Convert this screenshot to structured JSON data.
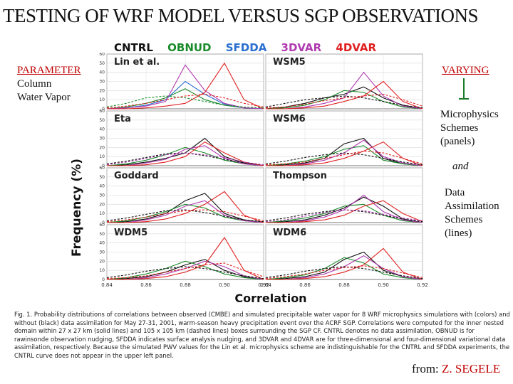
{
  "title": "TESTING OF WRF MODEL VERSUS SGP OBSERVATIONS",
  "legend": [
    {
      "label": "CNTRL",
      "color": "#111111"
    },
    {
      "label": "OBNUD",
      "color": "#1a8a2a"
    },
    {
      "label": "SFDDA",
      "color": "#2a6fd0"
    },
    {
      "label": "3DVAR",
      "color": "#b03ab0"
    },
    {
      "label": "4DVAR",
      "color": "#e02020"
    }
  ],
  "left_text": {
    "heading": "PARAMETER",
    "line1": "Column",
    "line2": "Water Vapor"
  },
  "right_text": {
    "heading": "VARYING",
    "line1": "Microphysics",
    "line2": "Schemes",
    "line3": "(panels)",
    "and": "and",
    "line4": "Data",
    "line5": "Assimilation",
    "line6": "Schemes",
    "line7": "(lines)"
  },
  "caption": "Fig. 1. Probability distributions of correlations between observed (CMBE) and simulated precipitable water vapor for 8 WRF microphysics simulations with (colors) and without (black) data assimilation for May 27-31, 2001, warm-season heavy precipitation event over the ACRF SGP. Correlations were computed for the inner nested domain within 27 x 27 km (solid lines) and 105 x 105 km (dashed lines) boxes surrounding the SGP CF. CNTRL denotes no data assimilation, OBNUD is for rawinsonde observation nudging, SFDDA indicates surface analysis nudging, and 3DVAR and 4DVAR are for three-dimensional and four-dimensional variational data assimilation, respectively. Because the simulated PWV values for the Lin et al. microphysics scheme are indistinguishable for the CNTRL and SFDDA experiments, the CNTRL curve does not appear in the upper left panel.",
  "credit": {
    "prefix": "from:",
    "name": "Z. SEGELE"
  },
  "chart_data": {
    "type": "line",
    "ylabel": "Frequency (%)",
    "xlabel": "Correlation",
    "x": [
      0.84,
      0.85,
      0.86,
      0.87,
      0.88,
      0.89,
      0.9,
      0.91,
      0.92
    ],
    "xticks": [
      "0.84",
      "0.86",
      "0.88",
      "0.90",
      "0.92"
    ],
    "xticks_values": [
      0.84,
      0.86,
      0.88,
      0.9,
      0.92
    ],
    "ylim": [
      0,
      60
    ],
    "yticks": [
      0,
      10,
      20,
      30,
      40,
      50,
      60
    ],
    "line_styles": {
      "solid": "27 x 27 km",
      "dashed": "105 x 105 km"
    },
    "panels": [
      {
        "name": "Lin et al.",
        "series": [
          {
            "name": "OBNUD",
            "color": "#1a8a2a",
            "style": "solid",
            "values": [
              0,
              2,
              6,
              12,
              22,
              10,
              4,
              1,
              0
            ]
          },
          {
            "name": "SFDDA",
            "color": "#2a6fd0",
            "style": "solid",
            "values": [
              0,
              1,
              4,
              10,
              30,
              16,
              5,
              1,
              0
            ]
          },
          {
            "name": "3DVAR",
            "color": "#b03ab0",
            "style": "solid",
            "values": [
              0,
              1,
              3,
              8,
              48,
              20,
              6,
              1,
              0
            ]
          },
          {
            "name": "4DVAR",
            "color": "#e02020",
            "style": "solid",
            "values": [
              0,
              0,
              1,
              3,
              6,
              18,
              50,
              10,
              0
            ]
          },
          {
            "name": "OBNUD",
            "color": "#1a8a2a",
            "style": "dashed",
            "values": [
              2,
              6,
              12,
              14,
              12,
              8,
              4,
              2,
              1
            ]
          },
          {
            "name": "4DVAR",
            "color": "#e02020",
            "style": "dashed",
            "values": [
              1,
              3,
              6,
              10,
              14,
              16,
              12,
              6,
              2
            ]
          }
        ]
      },
      {
        "name": "WSM5",
        "series": [
          {
            "name": "CNTRL",
            "color": "#111111",
            "style": "solid",
            "values": [
              0,
              2,
              6,
              12,
              16,
              24,
              12,
              4,
              0
            ]
          },
          {
            "name": "OBNUD",
            "color": "#1a8a2a",
            "style": "solid",
            "values": [
              0,
              1,
              4,
              10,
              20,
              18,
              8,
              2,
              0
            ]
          },
          {
            "name": "3DVAR",
            "color": "#b03ab0",
            "style": "solid",
            "values": [
              0,
              0,
              2,
              6,
              12,
              40,
              14,
              3,
              0
            ]
          },
          {
            "name": "4DVAR",
            "color": "#e02020",
            "style": "solid",
            "values": [
              0,
              0,
              1,
              3,
              8,
              14,
              30,
              8,
              0
            ]
          },
          {
            "name": "CNTRL",
            "color": "#111111",
            "style": "dashed",
            "values": [
              2,
              6,
              10,
              12,
              14,
              12,
              8,
              4,
              1
            ]
          },
          {
            "name": "4DVAR",
            "color": "#e02020",
            "style": "dashed",
            "values": [
              1,
              2,
              5,
              9,
              12,
              14,
              16,
              10,
              3
            ]
          }
        ]
      },
      {
        "name": "Eta",
        "series": [
          {
            "name": "CNTRL",
            "color": "#111111",
            "style": "solid",
            "values": [
              0,
              1,
              4,
              8,
              14,
              30,
              10,
              3,
              0
            ]
          },
          {
            "name": "OBNUD",
            "color": "#1a8a2a",
            "style": "solid",
            "values": [
              0,
              2,
              6,
              12,
              20,
              14,
              6,
              2,
              0
            ]
          },
          {
            "name": "3DVAR",
            "color": "#b03ab0",
            "style": "solid",
            "values": [
              0,
              0,
              3,
              7,
              18,
              22,
              8,
              2,
              0
            ]
          },
          {
            "name": "4DVAR",
            "color": "#e02020",
            "style": "solid",
            "values": [
              0,
              0,
              1,
              4,
              10,
              26,
              14,
              4,
              0
            ]
          },
          {
            "name": "CNTRL",
            "color": "#111111",
            "style": "dashed",
            "values": [
              2,
              5,
              9,
              13,
              14,
              11,
              7,
              3,
              1
            ]
          },
          {
            "name": "3DVAR",
            "color": "#b03ab0",
            "style": "dashed",
            "values": [
              1,
              4,
              8,
              12,
              14,
              12,
              9,
              4,
              1
            ]
          }
        ]
      },
      {
        "name": "WSM6",
        "series": [
          {
            "name": "CNTRL",
            "color": "#111111",
            "style": "solid",
            "values": [
              0,
              1,
              3,
              8,
              24,
              30,
              8,
              2,
              0
            ]
          },
          {
            "name": "OBNUD",
            "color": "#1a8a2a",
            "style": "solid",
            "values": [
              0,
              2,
              5,
              10,
              18,
              22,
              6,
              2,
              0
            ]
          },
          {
            "name": "3DVAR",
            "color": "#b03ab0",
            "style": "solid",
            "values": [
              0,
              0,
              2,
              6,
              14,
              28,
              10,
              3,
              0
            ]
          },
          {
            "name": "4DVAR",
            "color": "#e02020",
            "style": "solid",
            "values": [
              0,
              0,
              1,
              3,
              8,
              16,
              26,
              8,
              0
            ]
          },
          {
            "name": "CNTRL",
            "color": "#111111",
            "style": "dashed",
            "values": [
              2,
              5,
              9,
              12,
              14,
              12,
              8,
              4,
              1
            ]
          },
          {
            "name": "4DVAR",
            "color": "#e02020",
            "style": "dashed",
            "values": [
              1,
              2,
              4,
              8,
              12,
              16,
              14,
              8,
              2
            ]
          }
        ]
      },
      {
        "name": "Goddard",
        "series": [
          {
            "name": "CNTRL",
            "color": "#111111",
            "style": "solid",
            "values": [
              0,
              1,
              4,
              10,
              24,
              32,
              10,
              3,
              0
            ]
          },
          {
            "name": "OBNUD",
            "color": "#1a8a2a",
            "style": "solid",
            "values": [
              0,
              2,
              6,
              12,
              20,
              16,
              6,
              2,
              0
            ]
          },
          {
            "name": "3DVAR",
            "color": "#b03ab0",
            "style": "solid",
            "values": [
              0,
              0,
              3,
              8,
              18,
              24,
              8,
              2,
              0
            ]
          },
          {
            "name": "4DVAR",
            "color": "#e02020",
            "style": "solid",
            "values": [
              0,
              0,
              1,
              4,
              10,
              20,
              34,
              8,
              0
            ]
          },
          {
            "name": "CNTRL",
            "color": "#111111",
            "style": "dashed",
            "values": [
              2,
              5,
              9,
              13,
              14,
              11,
              7,
              3,
              1
            ]
          },
          {
            "name": "4DVAR",
            "color": "#e02020",
            "style": "dashed",
            "values": [
              1,
              3,
              6,
              10,
              13,
              14,
              12,
              7,
              2
            ]
          }
        ]
      },
      {
        "name": "Thompson",
        "series": [
          {
            "name": "CNTRL",
            "color": "#111111",
            "style": "solid",
            "values": [
              0,
              1,
              3,
              8,
              16,
              28,
              18,
              4,
              0
            ]
          },
          {
            "name": "OBNUD",
            "color": "#1a8a2a",
            "style": "solid",
            "values": [
              0,
              2,
              5,
              10,
              18,
              20,
              8,
              2,
              0
            ]
          },
          {
            "name": "3DVAR",
            "color": "#b03ab0",
            "style": "solid",
            "values": [
              0,
              0,
              2,
              6,
              14,
              30,
              12,
              3,
              0
            ]
          },
          {
            "name": "4DVAR",
            "color": "#e02020",
            "style": "solid",
            "values": [
              0,
              0,
              1,
              3,
              8,
              18,
              24,
              10,
              1
            ]
          },
          {
            "name": "CNTRL",
            "color": "#111111",
            "style": "dashed",
            "values": [
              2,
              5,
              9,
              12,
              14,
              12,
              8,
              4,
              1
            ]
          },
          {
            "name": "3DVAR",
            "color": "#b03ab0",
            "style": "dashed",
            "values": [
              1,
              3,
              7,
              11,
              14,
              13,
              9,
              5,
              2
            ]
          }
        ]
      },
      {
        "name": "WDM5",
        "series": [
          {
            "name": "CNTRL",
            "color": "#111111",
            "style": "solid",
            "values": [
              0,
              1,
              3,
              8,
              16,
              22,
              10,
              3,
              0
            ]
          },
          {
            "name": "OBNUD",
            "color": "#1a8a2a",
            "style": "solid",
            "values": [
              0,
              2,
              6,
              12,
              20,
              14,
              6,
              2,
              0
            ]
          },
          {
            "name": "3DVAR",
            "color": "#b03ab0",
            "style": "solid",
            "values": [
              0,
              0,
              2,
              6,
              12,
              20,
              14,
              4,
              0
            ]
          },
          {
            "name": "4DVAR",
            "color": "#e02020",
            "style": "solid",
            "values": [
              0,
              0,
              1,
              3,
              8,
              16,
              46,
              10,
              0
            ]
          },
          {
            "name": "CNTRL",
            "color": "#111111",
            "style": "dashed",
            "values": [
              2,
              5,
              9,
              12,
              14,
              12,
              8,
              4,
              1
            ]
          },
          {
            "name": "4DVAR",
            "color": "#e02020",
            "style": "dashed",
            "values": [
              1,
              2,
              4,
              8,
              12,
              16,
              18,
              10,
              3
            ]
          }
        ]
      },
      {
        "name": "WDM6",
        "series": [
          {
            "name": "CNTRL",
            "color": "#111111",
            "style": "solid",
            "values": [
              0,
              1,
              3,
              8,
              22,
              30,
              10,
              3,
              0
            ]
          },
          {
            "name": "OBNUD",
            "color": "#1a8a2a",
            "style": "solid",
            "values": [
              0,
              2,
              5,
              12,
              24,
              18,
              6,
              2,
              0
            ]
          },
          {
            "name": "3DVAR",
            "color": "#b03ab0",
            "style": "solid",
            "values": [
              0,
              0,
              2,
              6,
              14,
              26,
              12,
              3,
              0
            ]
          },
          {
            "name": "4DVAR",
            "color": "#e02020",
            "style": "solid",
            "values": [
              0,
              0,
              1,
              3,
              8,
              16,
              34,
              8,
              0
            ]
          },
          {
            "name": "CNTRL",
            "color": "#111111",
            "style": "dashed",
            "values": [
              2,
              5,
              9,
              12,
              14,
              12,
              8,
              4,
              1
            ]
          },
          {
            "name": "4DVAR",
            "color": "#e02020",
            "style": "dashed",
            "values": [
              1,
              3,
              6,
              10,
              13,
              15,
              12,
              7,
              2
            ]
          }
        ]
      }
    ]
  }
}
